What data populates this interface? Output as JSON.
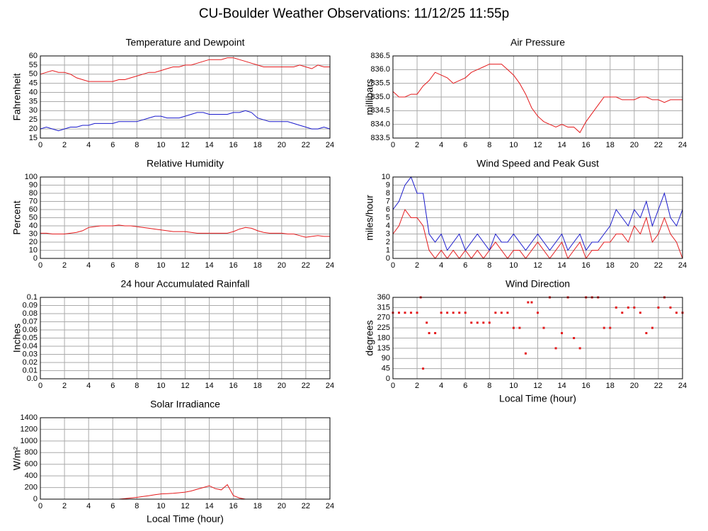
{
  "title": "CU-Boulder Weather Observations: 11/12/25 11:55p",
  "chart_data": [
    {
      "type": "line",
      "title": "Temperature and Dewpoint",
      "ylabel": "Fahrenheit",
      "x": [
        0,
        0.5,
        1,
        1.5,
        2,
        2.5,
        3,
        3.5,
        4,
        4.5,
        5,
        5.5,
        6,
        6.5,
        7,
        7.5,
        8,
        8.5,
        9,
        9.5,
        10,
        10.5,
        11,
        11.5,
        12,
        12.5,
        13,
        13.5,
        14,
        14.5,
        15,
        15.5,
        16,
        16.5,
        17,
        17.5,
        18,
        18.5,
        19,
        19.5,
        20,
        20.5,
        21,
        21.5,
        22,
        22.5,
        23,
        23.5,
        24
      ],
      "series": [
        {
          "color": "#e41a1c",
          "values": [
            50,
            51,
            52,
            51,
            51,
            50,
            48,
            47,
            46,
            46,
            46,
            46,
            46,
            47,
            47,
            48,
            49,
            50,
            51,
            51,
            52,
            53,
            54,
            54,
            55,
            55,
            56,
            57,
            58,
            58,
            58,
            59,
            59,
            58,
            57,
            56,
            55,
            54,
            54,
            54,
            54,
            54,
            54,
            55,
            54,
            53,
            55,
            54,
            54
          ]
        },
        {
          "color": "#1a1acc",
          "values": [
            20,
            21,
            20,
            19,
            20,
            21,
            21,
            22,
            22,
            23,
            23,
            23,
            23,
            24,
            24,
            24,
            24,
            25,
            26,
            27,
            27,
            26,
            26,
            26,
            27,
            28,
            29,
            29,
            28,
            28,
            28,
            28,
            29,
            29,
            30,
            29,
            26,
            25,
            24,
            24,
            24,
            24,
            23,
            22,
            21,
            20,
            20,
            21,
            20
          ]
        }
      ],
      "xlim": [
        0,
        24
      ],
      "xticks": [
        0,
        2,
        4,
        6,
        8,
        10,
        12,
        14,
        16,
        18,
        20,
        22,
        24
      ],
      "ylim": [
        15,
        60
      ],
      "yticks": [
        15,
        20,
        25,
        30,
        35,
        40,
        45,
        50,
        55,
        60
      ],
      "grid": true
    },
    {
      "type": "line",
      "title": "Air Pressure",
      "ylabel": "millibars",
      "x": [
        0,
        0.5,
        1,
        1.5,
        2,
        2.5,
        3,
        3.5,
        4,
        4.5,
        5,
        5.5,
        6,
        6.5,
        7,
        7.5,
        8,
        8.5,
        9,
        9.5,
        10,
        10.5,
        11,
        11.5,
        12,
        12.5,
        13,
        13.5,
        14,
        14.5,
        15,
        15.5,
        16,
        16.5,
        17,
        17.5,
        18,
        18.5,
        19,
        19.5,
        20,
        20.5,
        21,
        21.5,
        22,
        22.5,
        23,
        23.5,
        24
      ],
      "series": [
        {
          "color": "#e41a1c",
          "values": [
            835.2,
            835.0,
            835.0,
            835.1,
            835.1,
            835.4,
            835.6,
            835.9,
            835.8,
            835.7,
            835.5,
            835.6,
            835.7,
            835.9,
            836.0,
            836.1,
            836.2,
            836.2,
            836.2,
            836.0,
            835.8,
            835.5,
            835.1,
            834.6,
            834.3,
            834.1,
            834.0,
            833.9,
            834.0,
            833.9,
            833.9,
            833.7,
            834.1,
            834.4,
            834.7,
            835.0,
            835.0,
            835.0,
            834.9,
            834.9,
            834.9,
            835.0,
            835.0,
            834.9,
            834.9,
            834.8,
            834.9,
            834.9,
            834.9
          ]
        }
      ],
      "xlim": [
        0,
        24
      ],
      "xticks": [
        0,
        2,
        4,
        6,
        8,
        10,
        12,
        14,
        16,
        18,
        20,
        22,
        24
      ],
      "ylim": [
        833.5,
        836.5
      ],
      "yticks": [
        833.5,
        {
          "value": 834,
          "label": "834.0"
        },
        834.5,
        {
          "value": 835,
          "label": "835.0"
        },
        835.5,
        {
          "value": 836,
          "label": "836.0"
        },
        836.5
      ],
      "grid": true
    },
    {
      "type": "line",
      "title": "Relative Humidity",
      "ylabel": "Percent",
      "x": [
        0,
        0.5,
        1,
        1.5,
        2,
        2.5,
        3,
        3.5,
        4,
        4.5,
        5,
        5.5,
        6,
        6.5,
        7,
        7.5,
        8,
        8.5,
        9,
        9.5,
        10,
        10.5,
        11,
        11.5,
        12,
        12.5,
        13,
        13.5,
        14,
        14.5,
        15,
        15.5,
        16,
        16.5,
        17,
        17.5,
        18,
        18.5,
        19,
        19.5,
        20,
        20.5,
        21,
        21.5,
        22,
        22.5,
        23,
        23.5,
        24
      ],
      "series": [
        {
          "color": "#e41a1c",
          "values": [
            31,
            31,
            30,
            30,
            30,
            31,
            32,
            34,
            38,
            39,
            40,
            40,
            40,
            41,
            40,
            40,
            39,
            38,
            37,
            36,
            35,
            34,
            33,
            33,
            33,
            32,
            31,
            31,
            31,
            31,
            31,
            31,
            33,
            36,
            38,
            37,
            34,
            32,
            31,
            31,
            31,
            30,
            30,
            28,
            26,
            27,
            28,
            27,
            27
          ]
        }
      ],
      "xlim": [
        0,
        24
      ],
      "xticks": [
        0,
        2,
        4,
        6,
        8,
        10,
        12,
        14,
        16,
        18,
        20,
        22,
        24
      ],
      "ylim": [
        0,
        100
      ],
      "yticks": [
        0,
        10,
        20,
        30,
        40,
        50,
        60,
        70,
        80,
        90,
        100
      ],
      "grid": true
    },
    {
      "type": "line",
      "title": "Wind Speed and Peak Gust",
      "ylabel": "miles/hour",
      "x": [
        0,
        0.5,
        1,
        1.5,
        2,
        2.5,
        3,
        3.5,
        4,
        4.5,
        5,
        5.5,
        6,
        6.5,
        7,
        7.5,
        8,
        8.5,
        9,
        9.5,
        10,
        10.5,
        11,
        11.5,
        12,
        12.5,
        13,
        13.5,
        14,
        14.5,
        15,
        15.5,
        16,
        16.5,
        17,
        17.5,
        18,
        18.5,
        19,
        19.5,
        20,
        20.5,
        21,
        21.5,
        22,
        22.5,
        23,
        23.5,
        24
      ],
      "series": [
        {
          "color": "#e41a1c",
          "values": [
            3,
            4,
            6,
            5,
            5,
            4,
            1,
            0,
            1,
            0,
            1,
            0,
            1,
            0,
            1,
            0,
            1,
            2,
            1,
            0,
            1,
            1,
            0,
            1,
            2,
            1,
            0,
            1,
            2,
            0,
            1,
            2,
            0,
            1,
            1,
            2,
            2,
            3,
            3,
            2,
            4,
            3,
            5,
            2,
            3,
            5,
            3,
            2,
            0
          ]
        },
        {
          "color": "#1a1acc",
          "values": [
            6,
            7,
            9,
            10,
            8,
            8,
            3,
            2,
            3,
            1,
            2,
            3,
            1,
            2,
            3,
            2,
            1,
            3,
            2,
            2,
            3,
            2,
            1,
            2,
            3,
            2,
            1,
            2,
            3,
            1,
            2,
            3,
            1,
            2,
            2,
            3,
            4,
            6,
            5,
            4,
            6,
            5,
            7,
            4,
            6,
            8,
            5,
            4,
            6
          ]
        }
      ],
      "xlim": [
        0,
        24
      ],
      "xticks": [
        0,
        2,
        4,
        6,
        8,
        10,
        12,
        14,
        16,
        18,
        20,
        22,
        24
      ],
      "ylim": [
        0,
        10
      ],
      "yticks": [
        0,
        1,
        2,
        3,
        4,
        5,
        6,
        7,
        8,
        9,
        10
      ],
      "grid": true
    },
    {
      "type": "line",
      "title": "24 hour Accumulated Rainfall",
      "ylabel": "Inches",
      "x": [
        0,
        24
      ],
      "series": [
        {
          "color": "#e41a1c",
          "values": [
            0,
            0
          ]
        }
      ],
      "xlim": [
        0,
        24
      ],
      "xticks": [
        0,
        2,
        4,
        6,
        8,
        10,
        12,
        14,
        16,
        18,
        20,
        22,
        24
      ],
      "ylim": [
        0,
        0.1
      ],
      "yticks": [
        {
          "value": 0,
          "label": "0.0"
        },
        0.01,
        0.02,
        0.03,
        0.04,
        0.05,
        0.06,
        0.07,
        0.08,
        0.09,
        0.1
      ],
      "grid": true
    },
    {
      "type": "scatter",
      "title": "Wind Direction",
      "ylabel": "degrees",
      "xlabel": "Local Time (hour)",
      "x": [
        0,
        0.5,
        1,
        1.5,
        2,
        2.3,
        2.5,
        2.8,
        3,
        3.5,
        4,
        4.5,
        5,
        5.5,
        6,
        6.5,
        7,
        7.5,
        8,
        8.5,
        9,
        9.5,
        10,
        10.5,
        11,
        11.2,
        11.5,
        12,
        12.5,
        13,
        13.5,
        14,
        14.5,
        15,
        15.5,
        16,
        16.5,
        17,
        17.5,
        18,
        18.5,
        19,
        19.5,
        20,
        20.5,
        21,
        21.5,
        22,
        22.5,
        23,
        23.5,
        24
      ],
      "series": [
        {
          "color": "#e41a1c",
          "values": [
            292,
            292,
            292,
            292,
            292,
            360,
            45,
            248,
            202,
            202,
            292,
            292,
            292,
            292,
            292,
            248,
            248,
            248,
            248,
            292,
            292,
            292,
            225,
            225,
            112,
            338,
            338,
            292,
            225,
            360,
            135,
            202,
            360,
            180,
            135,
            360,
            360,
            360,
            225,
            225,
            315,
            292,
            315,
            315,
            292,
            202,
            225,
            315,
            360,
            315,
            292,
            292
          ]
        }
      ],
      "xlim": [
        0,
        24
      ],
      "xticks": [
        0,
        2,
        4,
        6,
        8,
        10,
        12,
        14,
        16,
        18,
        20,
        22,
        24
      ],
      "ylim": [
        0,
        360
      ],
      "yticks": [
        0,
        45,
        90,
        135,
        180,
        225,
        270,
        315,
        360
      ],
      "grid": true
    },
    {
      "type": "line",
      "title": "Solar Irradiance",
      "ylabel": "W/m²",
      "xlabel": "Local Time (hour)",
      "x": [
        0,
        0.5,
        1,
        1.5,
        2,
        2.5,
        3,
        3.5,
        4,
        4.5,
        5,
        5.5,
        6,
        6.5,
        7,
        7.5,
        8,
        8.5,
        9,
        9.5,
        10,
        10.5,
        11,
        11.5,
        12,
        12.5,
        13,
        13.5,
        14,
        14.5,
        15,
        15.5,
        16,
        16.5,
        17,
        17.5,
        18,
        18.5,
        19,
        19.5,
        20,
        20.5,
        21,
        21.5,
        22,
        22.5,
        23,
        23.5,
        24
      ],
      "series": [
        {
          "color": "#e41a1c",
          "values": [
            0,
            0,
            0,
            0,
            0,
            0,
            0,
            0,
            0,
            0,
            0,
            0,
            0,
            0,
            10,
            20,
            30,
            45,
            60,
            75,
            90,
            95,
            100,
            110,
            120,
            140,
            170,
            200,
            230,
            180,
            160,
            250,
            60,
            20,
            0,
            0,
            0,
            0,
            0,
            0,
            0,
            0,
            0,
            0,
            0,
            0,
            0,
            0,
            0
          ]
        }
      ],
      "xlim": [
        0,
        24
      ],
      "xticks": [
        0,
        2,
        4,
        6,
        8,
        10,
        12,
        14,
        16,
        18,
        20,
        22,
        24
      ],
      "ylim": [
        0,
        1400
      ],
      "yticks": [
        0,
        200,
        400,
        600,
        800,
        1000,
        1200,
        1400
      ],
      "grid": true
    }
  ]
}
